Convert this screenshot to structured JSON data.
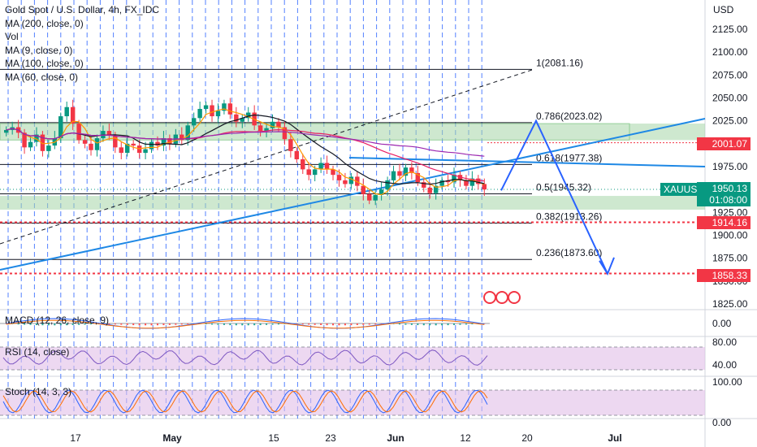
{
  "chart_data": {
    "type": "candlestick",
    "title": "Gold Spot / U.S. Dollar, 4h, FX_IDC",
    "symbol": "XAUUSD",
    "currency": "USD",
    "indicators": [
      "MA (200, close, 0)",
      "Vol",
      "MA (9, close, 0)",
      "MA (100, close, 0)",
      "MA (60, close, 0)"
    ],
    "price_axis": {
      "ticks": [
        "2125.00",
        "2100.00",
        "2075.00",
        "2050.00",
        "2025.00",
        "2000.00",
        "1975.00",
        "1950.00",
        "1925.00",
        "1900.00",
        "1875.00",
        "1850.00",
        "1825.00"
      ],
      "ylim": [
        1818,
        2138
      ]
    },
    "time_axis": {
      "ticks": [
        "17",
        "May",
        "15",
        "23",
        "Jun",
        "12",
        "20",
        "Jul"
      ]
    },
    "last_price": {
      "value": "1950.13",
      "countdown": "01:08:00"
    },
    "price_tags": [
      {
        "value": "2001.07",
        "color": "#f23645"
      },
      {
        "value": "1914.16",
        "color": "#f23645"
      },
      {
        "value": "1858.33",
        "color": "#f23645"
      }
    ],
    "fibonacci": [
      {
        "label": "1(2081.16)",
        "price": 2081.16
      },
      {
        "label": "0.786(2023.02)",
        "price": 2023.02
      },
      {
        "label": "0.618(1977.38)",
        "price": 1977.38
      },
      {
        "label": "0.5(1945.32)",
        "price": 1945.32
      },
      {
        "label": "0.382(1913.26)",
        "price": 1913.26
      },
      {
        "label": "0.236(1873.60)",
        "price": 1873.6
      }
    ],
    "zones": [
      {
        "from": 2004,
        "to": 2022
      },
      {
        "from": 1928,
        "to": 1943
      }
    ],
    "projection_path": [
      1949,
      2025,
      1858
    ],
    "close_series": [
      2015,
      2018,
      2012,
      1996,
      2002,
      2010,
      1992,
      1998,
      2006,
      2030,
      2040,
      2022,
      2004,
      2000,
      1993,
      2006,
      2014,
      2009,
      1996,
      1990,
      2000,
      1998,
      1990,
      1994,
      2002,
      1998,
      2006,
      2000,
      2010,
      2004,
      2020,
      2028,
      2038,
      2042,
      2030,
      2036,
      2044,
      2032,
      2024,
      2028,
      2034,
      2020,
      2014,
      2017,
      2024,
      2018,
      2005,
      1992,
      1983,
      1972,
      1966,
      1972,
      1979,
      1972,
      1966,
      1960,
      1956,
      1964,
      1954,
      1945,
      1938,
      1944,
      1950,
      1960,
      1970,
      1965,
      1974,
      1968,
      1958,
      1952,
      1946,
      1954,
      1960,
      1958,
      1966,
      1960,
      1954,
      1962,
      1956,
      1950
    ]
  },
  "macd": {
    "label": "MACD (12, 26, close, 9)",
    "ticks": [
      "0.00"
    ]
  },
  "rsi": {
    "label": "RSI (14, close)",
    "ticks": [
      "80.00",
      "40.00"
    ]
  },
  "stoch": {
    "label": "Stoch (14, 3, 3)",
    "ticks": [
      "100.00",
      "0.00"
    ]
  },
  "colors": {
    "up": "#089981",
    "down": "#f23645",
    "blue": "#2962ff",
    "trend": "#1e88e5",
    "zone": "#a5d6a7",
    "band": "#e1bee7",
    "grid_v": "#2962ff"
  }
}
